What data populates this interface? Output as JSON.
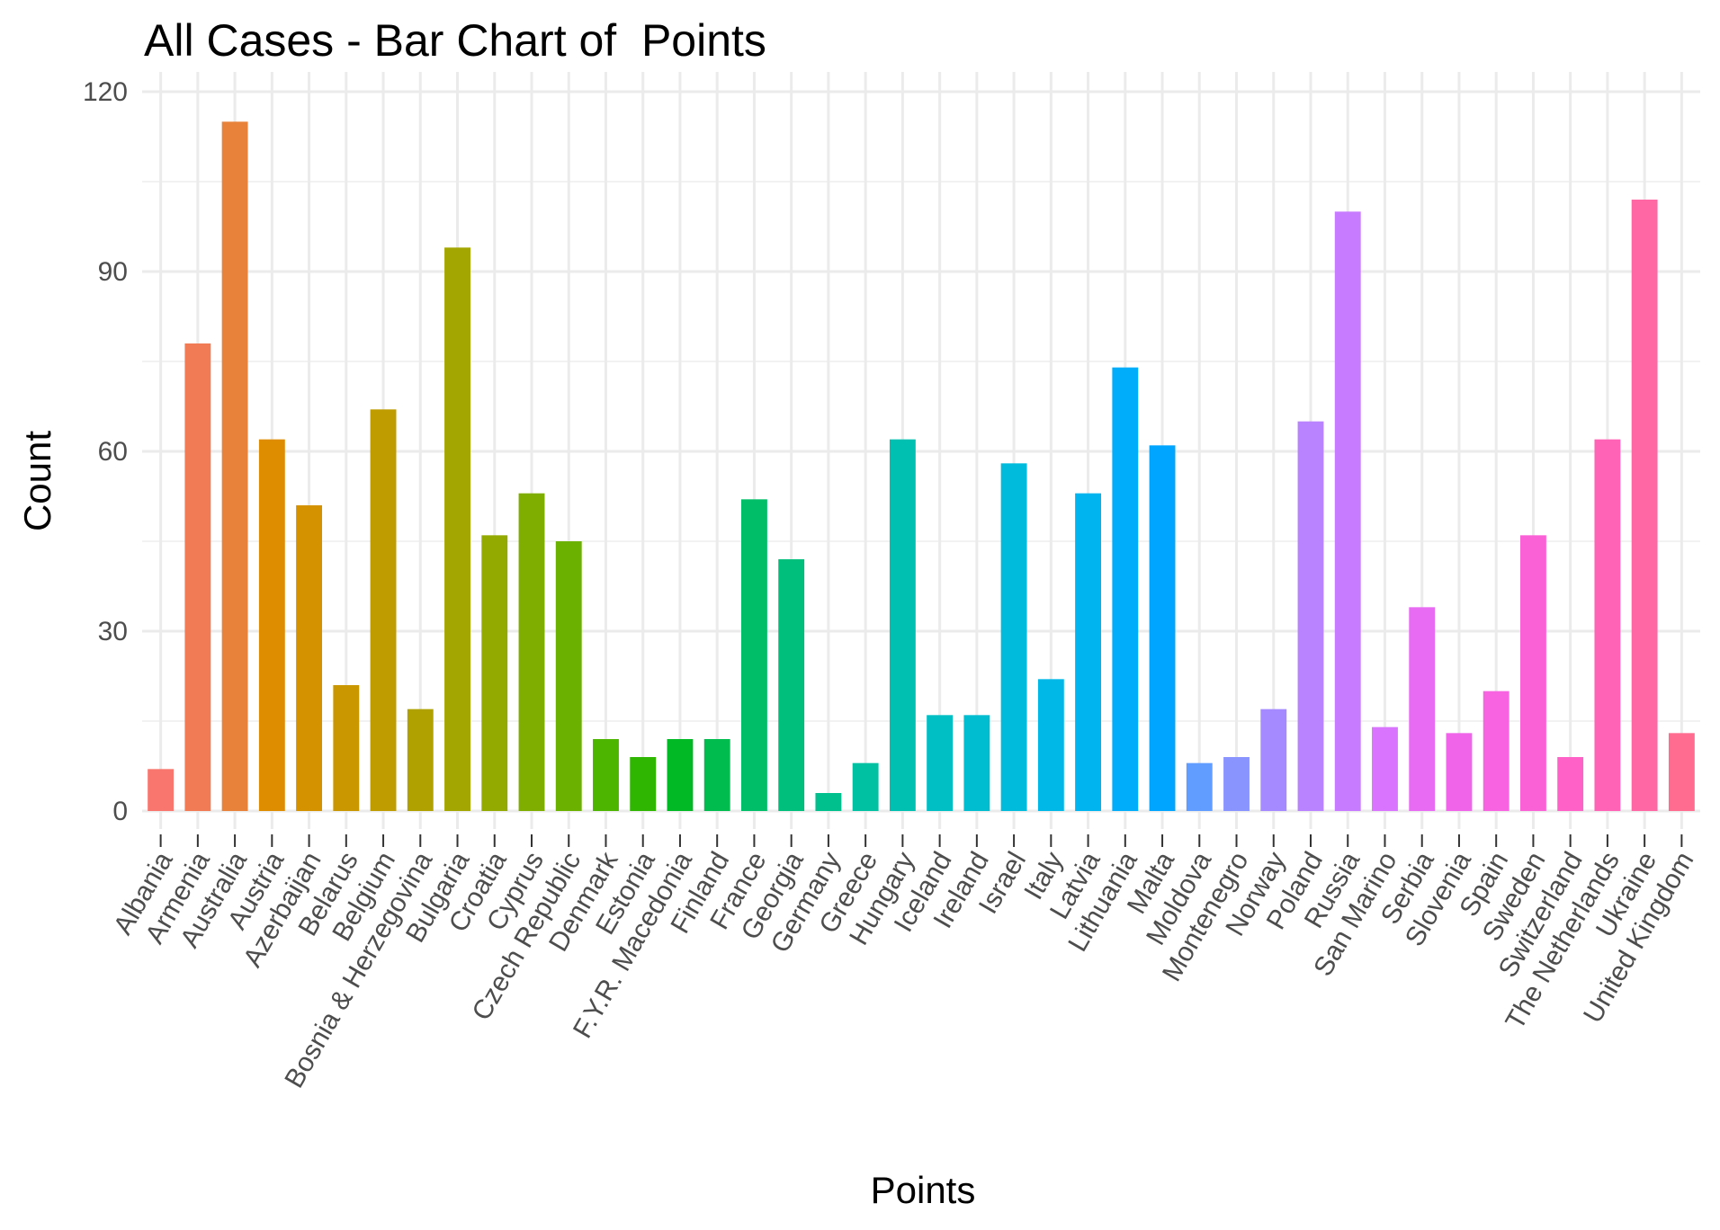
{
  "chart_data": {
    "type": "bar",
    "title": "All Cases - Bar Chart of  Points",
    "xlabel": "Points",
    "ylabel": "Count",
    "ylim": [
      0,
      120
    ],
    "yticks": [
      0,
      30,
      60,
      90,
      120
    ],
    "grid": true,
    "legend": "none",
    "categories": [
      "Albania",
      "Armenia",
      "Australia",
      "Austria",
      "Azerbaijan",
      "Belarus",
      "Belgium",
      "Bosnia & Herzegovina",
      "Bulgaria",
      "Croatia",
      "Cyprus",
      "Czech Republic",
      "Denmark",
      "Estonia",
      "F.Y.R. Macedonia",
      "Finland",
      "France",
      "Georgia",
      "Germany",
      "Greece",
      "Hungary",
      "Iceland",
      "Ireland",
      "Israel",
      "Italy",
      "Latvia",
      "Lithuania",
      "Malta",
      "Moldova",
      "Montenegro",
      "Norway",
      "Poland",
      "Russia",
      "San Marino",
      "Serbia",
      "Slovenia",
      "Spain",
      "Sweden",
      "Switzerland",
      "The Netherlands",
      "Ukraine",
      "United Kingdom"
    ],
    "values": [
      7,
      78,
      115,
      62,
      51,
      21,
      67,
      17,
      94,
      46,
      53,
      45,
      12,
      9,
      12,
      12,
      52,
      42,
      3,
      8,
      62,
      16,
      16,
      58,
      22,
      53,
      74,
      61,
      8,
      9,
      17,
      65,
      100,
      14,
      34,
      13,
      20,
      46,
      9,
      62,
      102,
      13
    ],
    "colors": [
      "#F8766D",
      "#F17B55",
      "#E8823A",
      "#DE8C00",
      "#D49200",
      "#CA9700",
      "#BF9C00",
      "#B1A100",
      "#A3A500",
      "#93AA00",
      "#80AE00",
      "#6AB100",
      "#4DB400",
      "#2FB600",
      "#00B925",
      "#00BB4E",
      "#00BE67",
      "#00BF7D",
      "#00C08E",
      "#00C1A2",
      "#00C0B2",
      "#00BFC4",
      "#00BDD0",
      "#00BBDC",
      "#00B8E7",
      "#00B4F0",
      "#00ADFA",
      "#00A5FF",
      "#619CFF",
      "#8A94FF",
      "#A58AFF",
      "#B983FF",
      "#C77CFF",
      "#D874FD",
      "#E86CF3",
      "#F064EA",
      "#F763E0",
      "#FB61D7",
      "#FF61C6",
      "#FF63B6",
      "#FF67A4",
      "#FF6C90"
    ]
  }
}
